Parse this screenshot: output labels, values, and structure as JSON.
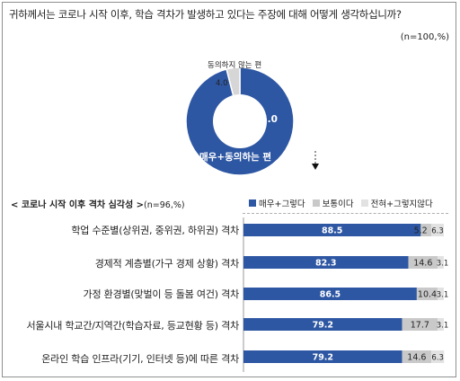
{
  "question": "귀하께서는 코로나 시작 이후, 학습 격차가 발생하고 있다는 주장에 대해 어떻게 생각하십니까?",
  "n_top": "(n=100,%)",
  "colors": {
    "agree": "#2e57a3",
    "neutral": "#c9c9c9",
    "disagree": "#e2e2e2",
    "donut_disagree": "#d6d6d6"
  },
  "chart_data": [
    {
      "type": "pie",
      "variant": "donut",
      "slices": [
        {
          "label": "매우+동의하는 편",
          "value": 96.0,
          "display": "96.0"
        },
        {
          "label": "동의하지 않는 편",
          "value": 4.0,
          "display": "4.0"
        }
      ]
    },
    {
      "type": "bar",
      "orientation": "horizontal",
      "stacked": true,
      "title": "< 코로나 시작 이후 격차 심각성 >",
      "subtitle": "(n=96,%)",
      "xlim": [
        0,
        100
      ],
      "legend_position": "top",
      "categories": [
        "학업 수준별(상위권, 중위권, 하위권) 격차",
        "경제적 계층별(가구 경제 상황) 격차",
        "가정 환경별(맞벌이 등 돌봄 여건) 격차",
        "서울시내 학교간/지역간(학습자료, 등교현황 등) 격차",
        "온라인 학습 인프라(기기, 인터넷 등)에 따른 격차"
      ],
      "series": [
        {
          "name": "매우+그렇다",
          "values": [
            88.5,
            82.3,
            86.5,
            79.2,
            79.2
          ]
        },
        {
          "name": "보통이다",
          "values": [
            5.2,
            14.6,
            10.4,
            17.7,
            14.6
          ]
        },
        {
          "name": "전혀+그렇지않다",
          "values": [
            6.3,
            3.1,
            3.1,
            3.1,
            6.3
          ]
        }
      ]
    }
  ]
}
